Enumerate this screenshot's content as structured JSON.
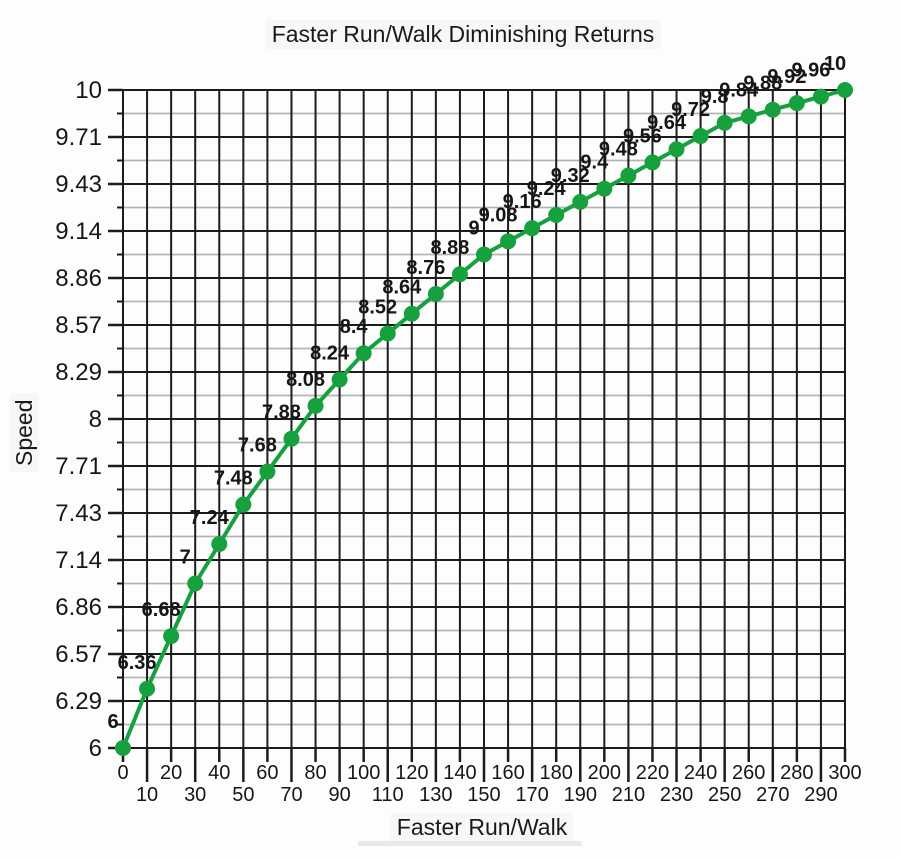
{
  "chart_data": {
    "type": "line",
    "title": "Faster Run/Walk Diminishing Returns",
    "xlabel": "Faster Run/Walk",
    "ylabel": "Speed",
    "x": [
      0,
      10,
      20,
      30,
      40,
      50,
      60,
      70,
      80,
      90,
      100,
      110,
      120,
      130,
      140,
      150,
      160,
      170,
      180,
      190,
      200,
      210,
      220,
      230,
      240,
      250,
      260,
      270,
      280,
      290,
      300
    ],
    "values": [
      6,
      6.36,
      6.68,
      7,
      7.24,
      7.48,
      7.68,
      7.88,
      8.08,
      8.24,
      8.4,
      8.52,
      8.64,
      8.76,
      8.88,
      9,
      9.08,
      9.16,
      9.24,
      9.32,
      9.4,
      9.48,
      9.56,
      9.64,
      9.72,
      9.8,
      9.84,
      9.88,
      9.92,
      9.96,
      10
    ],
    "point_labels": [
      "6",
      "6.36",
      "6.68",
      "7",
      "7.24",
      "7.48",
      "7.68",
      "7.88",
      "8.08",
      "8.24",
      "8.4",
      "8.52",
      "8.64",
      "8.76",
      "8.88",
      "9",
      "9.08",
      "9.16",
      "9.24",
      "9.32",
      "9.4",
      "9.48",
      "9.56",
      "9.64",
      "9.72",
      "9.8",
      "9.84",
      "9.88",
      "9.92",
      "9.96",
      "10"
    ],
    "x_tick_labels": [
      "0",
      "10",
      "20",
      "30",
      "40",
      "50",
      "60",
      "70",
      "80",
      "90",
      "100",
      "110",
      "120",
      "130",
      "140",
      "150",
      "160",
      "170",
      "180",
      "190",
      "200",
      "210",
      "220",
      "230",
      "240",
      "250",
      "260",
      "270",
      "280",
      "290",
      "300"
    ],
    "y_tick_labels": [
      "6",
      "6.29",
      "6.57",
      "6.86",
      "7.14",
      "7.43",
      "7.71",
      "8",
      "8.29",
      "8.57",
      "8.86",
      "9.14",
      "9.43",
      "9.71",
      "10"
    ],
    "xlim": [
      0,
      300
    ],
    "ylim": [
      6,
      10
    ],
    "grid": "major dark + minor light horizontal, vertical every 10",
    "legend": "none",
    "line_color": "#17a03e",
    "marker_color": "#17a03e",
    "grid_major_color": "#1c1c1c",
    "grid_minor_color": "#b5b5b5",
    "text_color": "#161616"
  }
}
